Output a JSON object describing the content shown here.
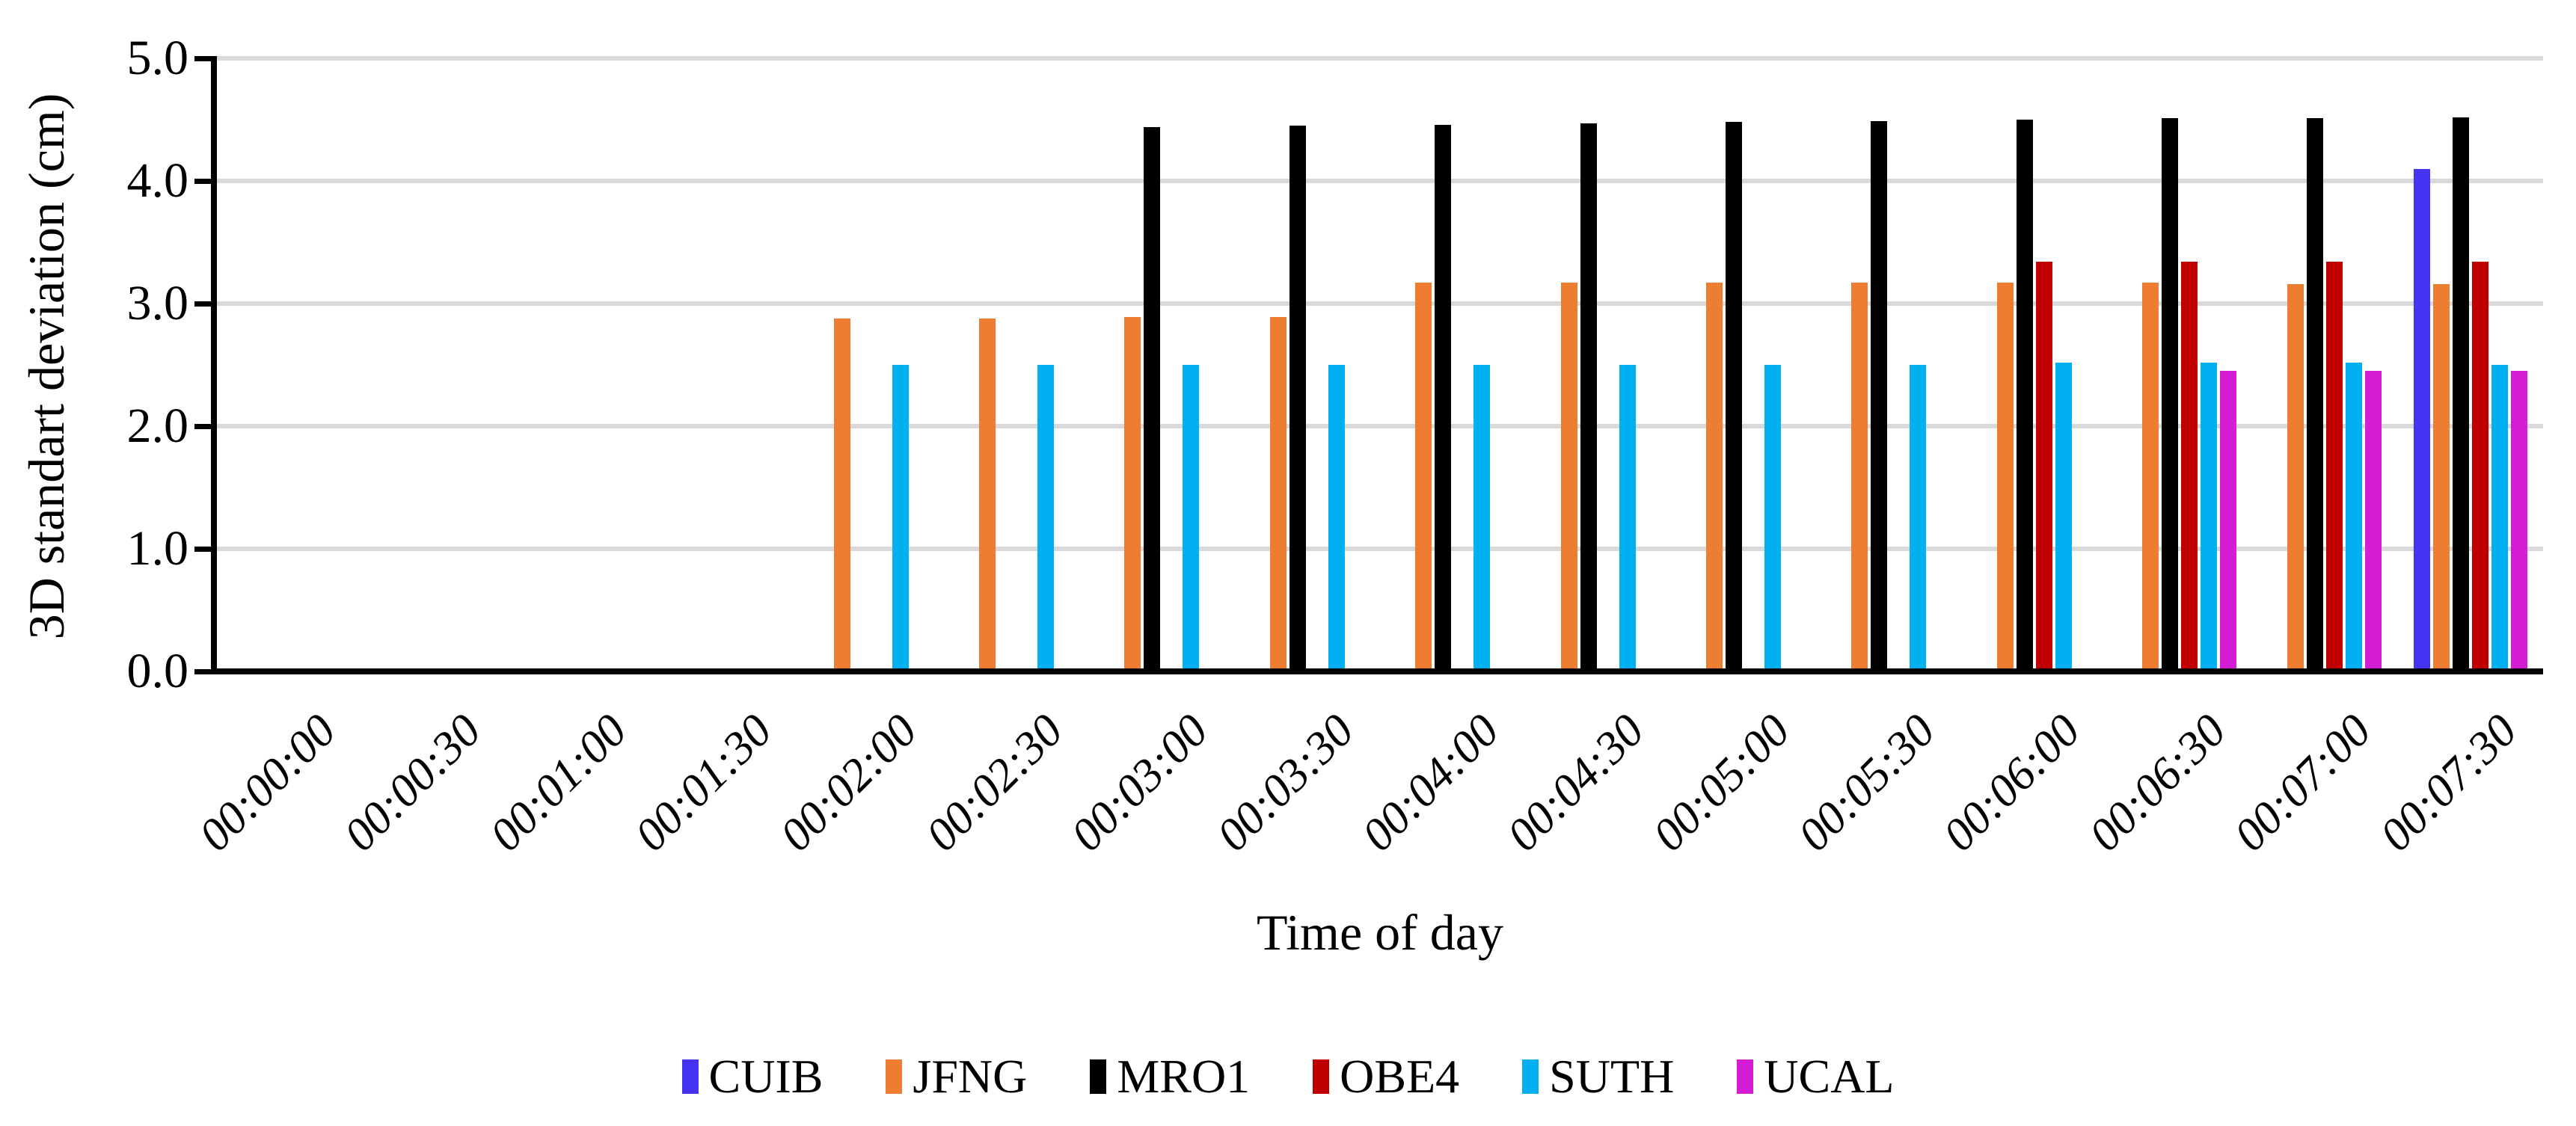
{
  "chart_data": {
    "type": "bar",
    "title": "",
    "xlabel": "Time of day",
    "ylabel": "3D standart deviation (cm)",
    "ylim": [
      0.0,
      5.0
    ],
    "ytick_step": 1.0,
    "ytick_labels": [
      "0.0",
      "1.0",
      "2.0",
      "3.0",
      "4.0",
      "5.0"
    ],
    "grid": true,
    "gridline_color": "#D9D9D9",
    "axis_color": "#000000",
    "legend_position": "bottom",
    "categories": [
      "00:00:00",
      "00:00:30",
      "00:01:00",
      "00:01:30",
      "00:02:00",
      "00:02:30",
      "00:03:00",
      "00:03:30",
      "00:04:00",
      "00:04:30",
      "00:05:00",
      "00:05:30",
      "00:06:00",
      "00:06:30",
      "00:07:00",
      "00:07:30"
    ],
    "series": [
      {
        "name": "CUIB",
        "color": "#4433F0",
        "values": [
          null,
          null,
          null,
          null,
          null,
          null,
          null,
          null,
          null,
          null,
          null,
          null,
          null,
          null,
          null,
          4.1
        ]
      },
      {
        "name": "JFNG",
        "color": "#ED7D31",
        "values": [
          null,
          null,
          null,
          null,
          2.88,
          2.88,
          2.89,
          2.89,
          3.17,
          3.17,
          3.17,
          3.17,
          3.17,
          3.17,
          3.16,
          3.16
        ]
      },
      {
        "name": "MRO1",
        "color": "#000000",
        "values": [
          null,
          null,
          null,
          null,
          null,
          null,
          4.44,
          4.45,
          4.46,
          4.47,
          4.48,
          4.49,
          4.5,
          4.51,
          4.51,
          4.52
        ]
      },
      {
        "name": "OBE4",
        "color": "#C00000",
        "values": [
          null,
          null,
          null,
          null,
          null,
          null,
          null,
          null,
          null,
          null,
          null,
          null,
          3.34,
          3.34,
          3.34,
          3.34
        ]
      },
      {
        "name": "SUTH",
        "color": "#00B0F0",
        "values": [
          null,
          null,
          null,
          null,
          2.5,
          2.5,
          2.5,
          2.5,
          2.5,
          2.5,
          2.5,
          2.5,
          2.52,
          2.52,
          2.52,
          2.5
        ]
      },
      {
        "name": "UCAL",
        "color": "#D41DD4",
        "values": [
          null,
          null,
          null,
          null,
          null,
          null,
          null,
          null,
          null,
          null,
          null,
          null,
          null,
          2.45,
          2.45,
          2.45
        ]
      }
    ]
  }
}
